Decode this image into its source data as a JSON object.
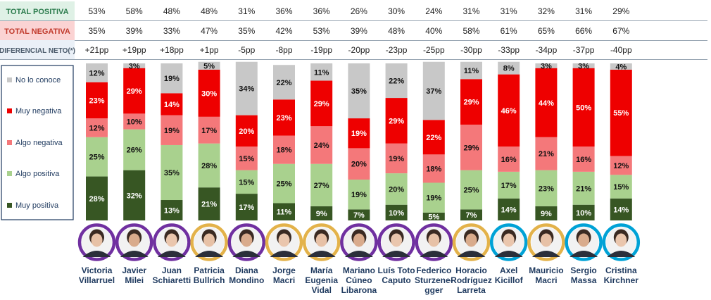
{
  "summary_rows": [
    {
      "label": "TOTAL POSITIVA",
      "values": [
        "53%",
        "58%",
        "48%",
        "48%",
        "31%",
        "36%",
        "36%",
        "26%",
        "30%",
        "24%",
        "31%",
        "31%",
        "32%",
        "31%",
        "29%"
      ]
    },
    {
      "label": "TOTAL NEGATIVA",
      "values": [
        "35%",
        "39%",
        "33%",
        "47%",
        "35%",
        "42%",
        "53%",
        "39%",
        "48%",
        "40%",
        "58%",
        "61%",
        "65%",
        "66%",
        "67%"
      ]
    },
    {
      "label": "DIFERENCIAL NETO(*)",
      "values": [
        "+21pp",
        "+19pp",
        "+18pp",
        "+1pp",
        "-5pp",
        "-8pp",
        "-19pp",
        "-20pp",
        "-23pp",
        "-25pp",
        "-30pp",
        "-33pp",
        "-34pp",
        "-37pp",
        "-40pp"
      ]
    }
  ],
  "legend": [
    {
      "label": "No lo conoce"
    },
    {
      "label": "Muy negativa"
    },
    {
      "label": "Algo negativa"
    },
    {
      "label": "Algo positiva"
    },
    {
      "label": "Muy positiva"
    }
  ],
  "colors": {
    "Muy positiva": "#375623",
    "Algo positiva": "#a9d18e",
    "Algo negativa": "#f4787a",
    "Muy negativa": "#ee0000",
    "No lo conoce": "#c8c8c8",
    "row_positive_bg": "#dff1e6",
    "row_negative_bg": "#fbd3d3",
    "row_diff_bg": "#eaf0f7",
    "ring_purple": "#7030a0",
    "ring_gold": "#e3b24a",
    "ring_cyan": "#00a2d6"
  },
  "candidates": [
    {
      "name_lines": [
        "Victoria",
        "Villarruel"
      ],
      "ring": "purple"
    },
    {
      "name_lines": [
        "Javier",
        "Milei"
      ],
      "ring": "purple"
    },
    {
      "name_lines": [
        "Juan",
        "Schiaretti"
      ],
      "ring": "purple"
    },
    {
      "name_lines": [
        "Patricia",
        "Bullrich"
      ],
      "ring": "gold"
    },
    {
      "name_lines": [
        "Diana",
        "Mondino"
      ],
      "ring": "purple"
    },
    {
      "name_lines": [
        "Jorge",
        "Macri"
      ],
      "ring": "gold"
    },
    {
      "name_lines": [
        "María",
        "Eugenia",
        "Vidal"
      ],
      "ring": "gold"
    },
    {
      "name_lines": [
        "Mariano",
        "Cúneo",
        "Libarona"
      ],
      "ring": "purple"
    },
    {
      "name_lines": [
        "Luís Toto",
        "Caputo"
      ],
      "ring": "purple"
    },
    {
      "name_lines": [
        "Federico",
        "Sturzene-",
        "gger"
      ],
      "ring": "purple"
    },
    {
      "name_lines": [
        "Horacio",
        "Rodríguez",
        "Larreta"
      ],
      "ring": "gold"
    },
    {
      "name_lines": [
        "Axel",
        "Kicillof"
      ],
      "ring": "cyan"
    },
    {
      "name_lines": [
        "Mauricio",
        "Macri"
      ],
      "ring": "gold"
    },
    {
      "name_lines": [
        "Sergio",
        "Massa"
      ],
      "ring": "cyan"
    },
    {
      "name_lines": [
        "Cristina",
        "Kirchner"
      ],
      "ring": "cyan"
    }
  ],
  "chart_data": {
    "type": "bar",
    "stacked": true,
    "categories": [
      "Victoria Villarruel",
      "Javier Milei",
      "Juan Schiaretti",
      "Patricia Bullrich",
      "Diana Mondino",
      "Jorge Macri",
      "María Eugenia Vidal",
      "Mariano Cúneo Libarona",
      "Luís Toto Caputo",
      "Federico Sturzenegger",
      "Horacio Rodríguez Larreta",
      "Axel Kicillof",
      "Mauricio Macri",
      "Sergio Massa",
      "Cristina Kirchner"
    ],
    "series": [
      {
        "name": "Muy positiva",
        "values": [
          28,
          32,
          13,
          21,
          17,
          11,
          9,
          7,
          10,
          5,
          7,
          14,
          9,
          10,
          14
        ]
      },
      {
        "name": "Algo positiva",
        "values": [
          25,
          26,
          35,
          28,
          15,
          25,
          27,
          19,
          20,
          19,
          25,
          17,
          23,
          21,
          15
        ]
      },
      {
        "name": "Algo negativa",
        "values": [
          12,
          10,
          19,
          17,
          15,
          18,
          24,
          20,
          19,
          18,
          29,
          16,
          21,
          16,
          12
        ]
      },
      {
        "name": "Muy negativa",
        "values": [
          23,
          29,
          14,
          30,
          20,
          23,
          29,
          19,
          29,
          22,
          29,
          46,
          44,
          50,
          55
        ]
      },
      {
        "name": "No lo conoce",
        "values": [
          12,
          3,
          19,
          5,
          34,
          22,
          11,
          35,
          22,
          37,
          11,
          8,
          3,
          3,
          4
        ]
      }
    ],
    "ylim": [
      0,
      100
    ],
    "legend_position": "left",
    "grid": false
  }
}
